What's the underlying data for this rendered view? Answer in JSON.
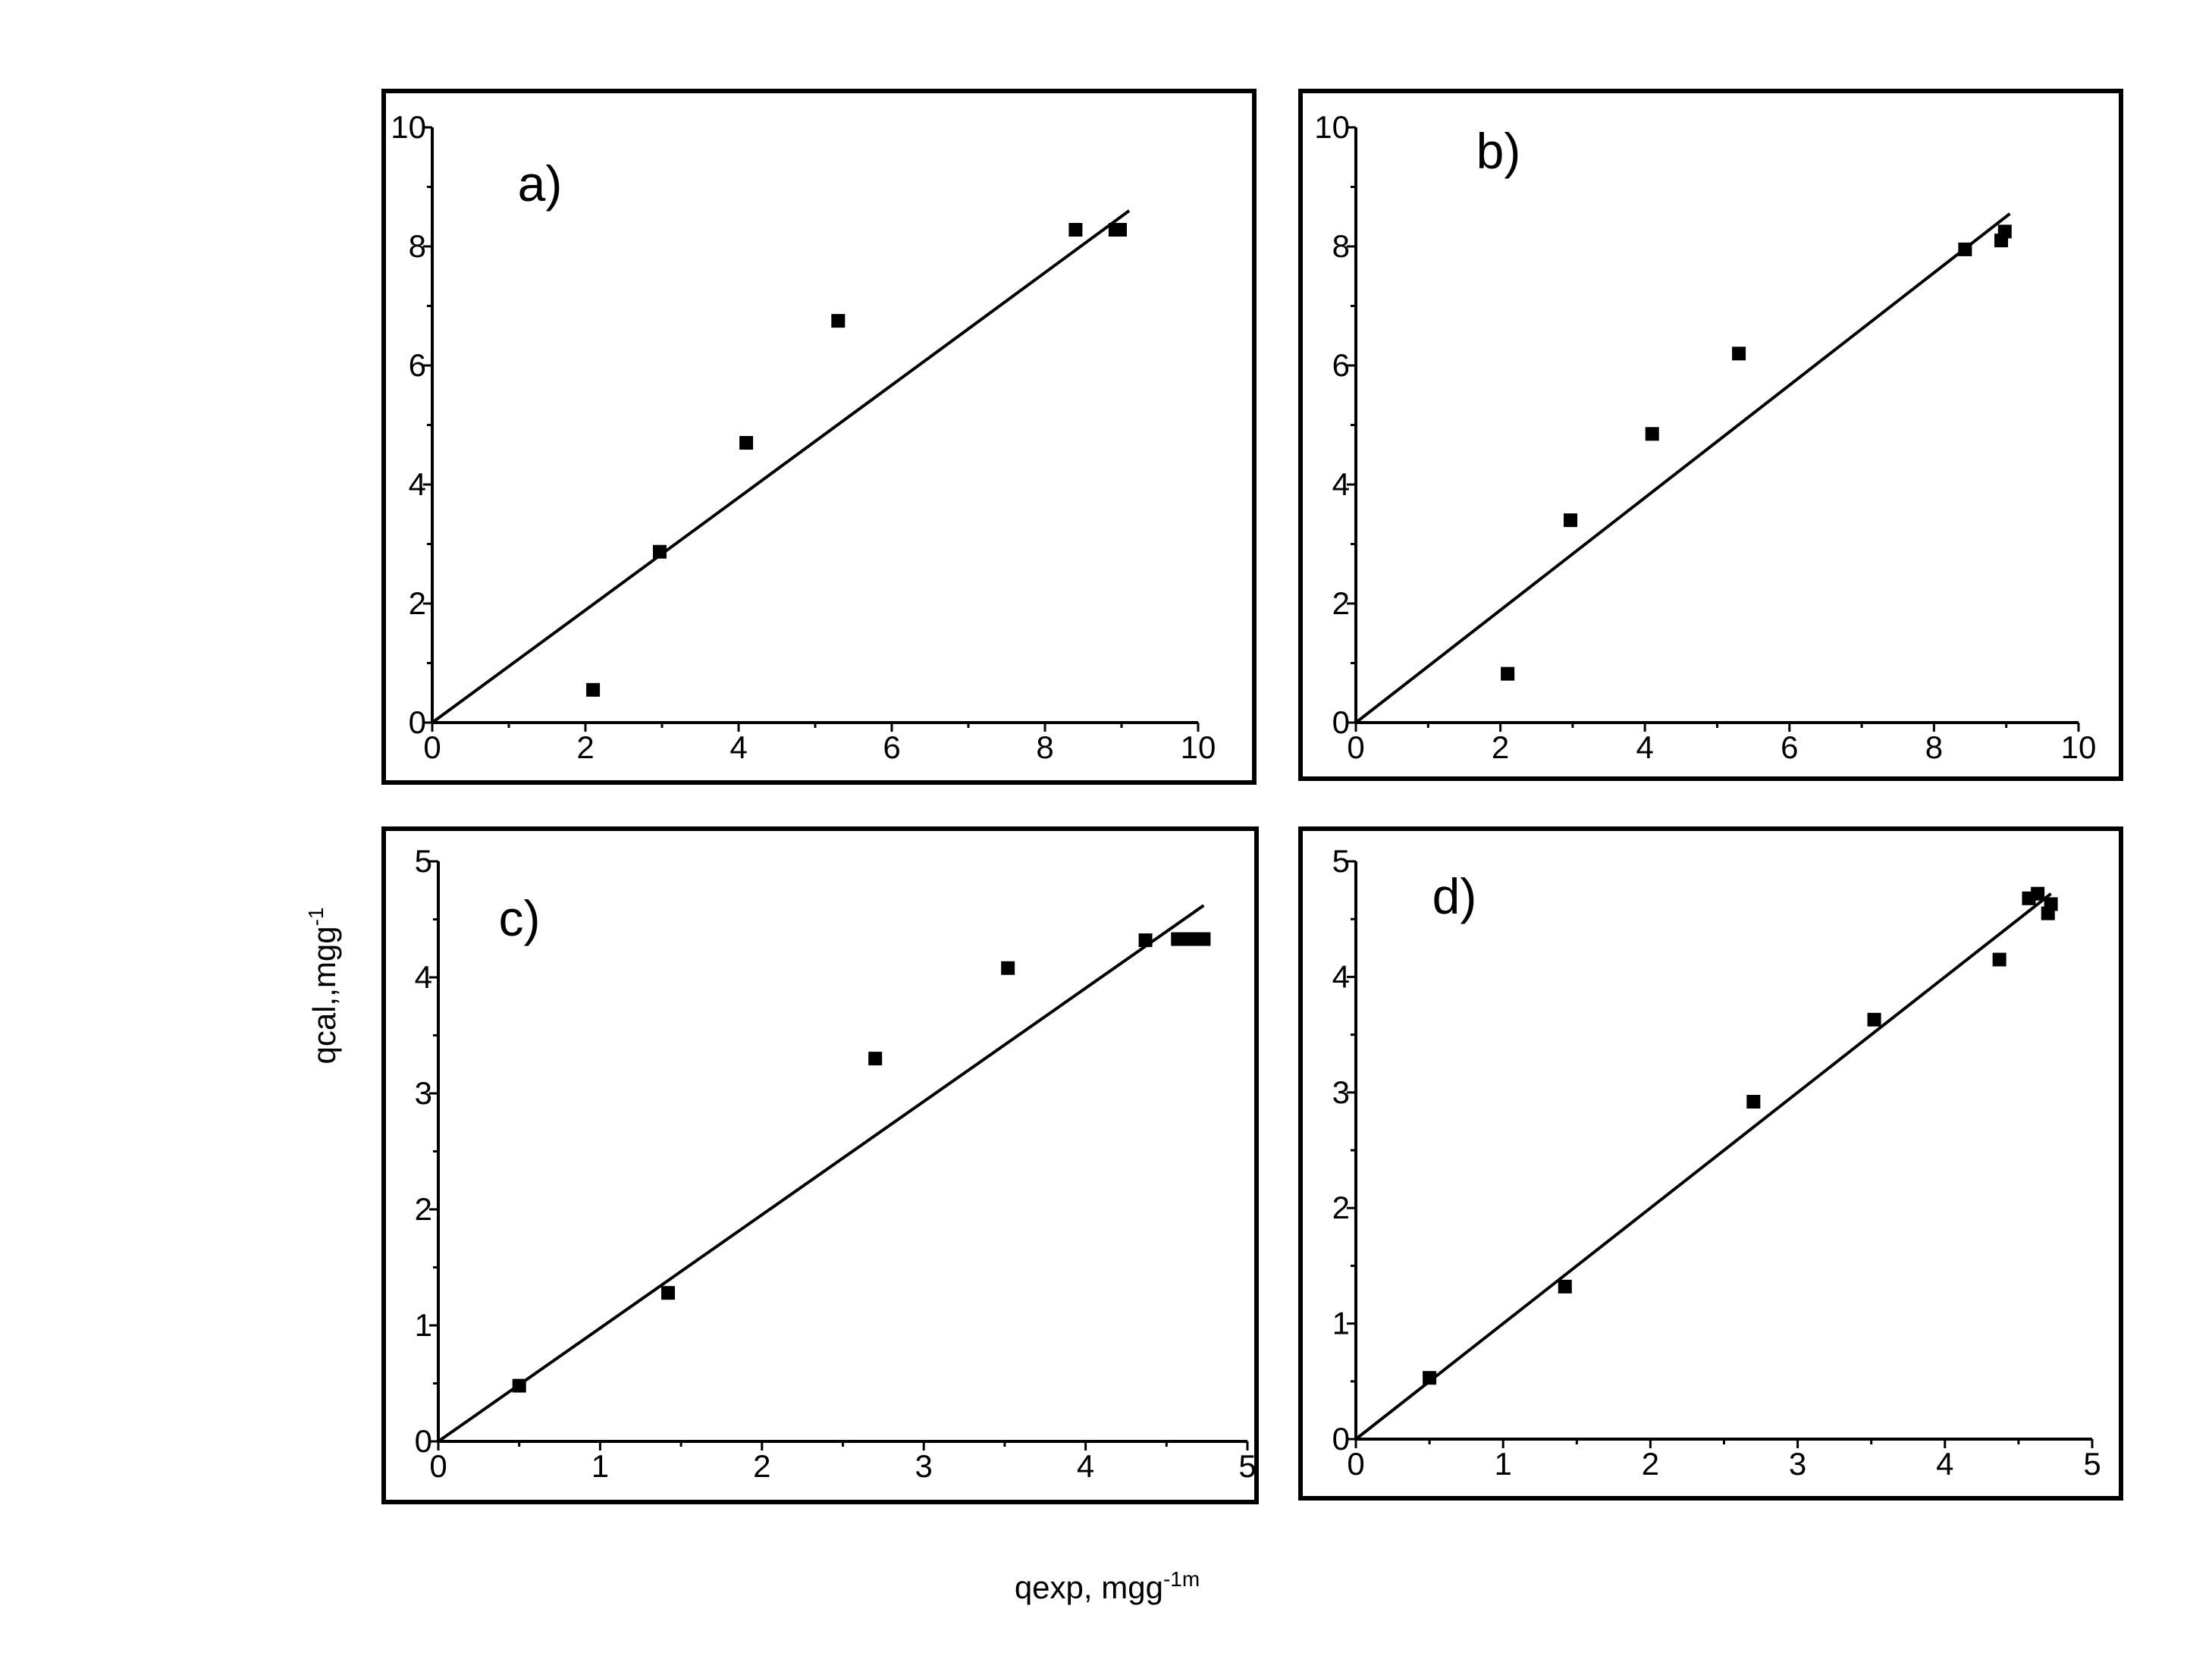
{
  "figure": {
    "xlabel_main": "qexp, mgg",
    "xlabel_sup": "-1m",
    "ylabel_main": "qcal,,mgg",
    "ylabel_sup": "-1"
  },
  "chart_data": [
    {
      "type": "scatter",
      "panel": "a)",
      "xlim": [
        0,
        10
      ],
      "ylim": [
        0,
        10
      ],
      "xticks": [
        0,
        2,
        4,
        6,
        8,
        10
      ],
      "yticks": [
        0,
        2,
        4,
        6,
        8,
        10
      ],
      "x_tick_labels": [
        "0",
        "2",
        "4",
        "6",
        "8",
        "10"
      ],
      "y_tick_labels": [
        "0",
        "2",
        "4",
        "6",
        "8",
        "10"
      ],
      "points": [
        [
          2.1,
          0.55
        ],
        [
          2.97,
          2.87
        ],
        [
          4.1,
          4.7
        ],
        [
          5.3,
          6.75
        ],
        [
          8.4,
          8.28
        ],
        [
          8.92,
          8.28
        ],
        [
          8.98,
          8.28
        ]
      ],
      "fit_line": [
        [
          0,
          0
        ],
        [
          9.1,
          8.6
        ]
      ],
      "grid": false
    },
    {
      "type": "scatter",
      "panel": "b)",
      "xlim": [
        0,
        10
      ],
      "ylim": [
        0,
        10
      ],
      "xticks": [
        0,
        2,
        4,
        6,
        8,
        10
      ],
      "yticks": [
        0,
        2,
        4,
        6,
        8,
        10
      ],
      "x_tick_labels": [
        "0",
        "2",
        "4",
        "6",
        "8",
        "10"
      ],
      "y_tick_labels": [
        "0",
        "2",
        "4",
        "6",
        "8",
        "10"
      ],
      "points": [
        [
          2.1,
          0.82
        ],
        [
          2.97,
          3.4
        ],
        [
          4.1,
          4.85
        ],
        [
          5.3,
          6.2
        ],
        [
          8.43,
          7.95
        ],
        [
          8.93,
          8.1
        ],
        [
          8.98,
          8.25
        ]
      ],
      "fit_line": [
        [
          0,
          0
        ],
        [
          9.05,
          8.55
        ]
      ],
      "grid": false
    },
    {
      "type": "scatter",
      "panel": "c)",
      "xlim": [
        0,
        5
      ],
      "ylim": [
        0,
        5
      ],
      "xticks": [
        0,
        1,
        2,
        3,
        4,
        5
      ],
      "yticks": [
        0,
        1,
        2,
        3,
        4,
        5
      ],
      "x_tick_labels": [
        "0",
        "1",
        "2",
        "3",
        "4",
        "5"
      ],
      "y_tick_labels": [
        "0",
        "1",
        "2",
        "3",
        "4",
        "5"
      ],
      "points": [
        [
          0.5,
          0.48
        ],
        [
          1.42,
          1.28
        ],
        [
          2.7,
          3.3
        ],
        [
          3.52,
          4.08
        ],
        [
          4.37,
          4.32
        ],
        [
          4.57,
          4.33
        ],
        [
          4.65,
          4.33
        ],
        [
          4.73,
          4.33
        ]
      ],
      "fit_line": [
        [
          0,
          0
        ],
        [
          4.73,
          4.62
        ]
      ],
      "grid": false
    },
    {
      "type": "scatter",
      "panel": "d)",
      "xlim": [
        0,
        5
      ],
      "ylim": [
        0,
        5
      ],
      "xticks": [
        0,
        1,
        2,
        3,
        4,
        5
      ],
      "yticks": [
        0,
        1,
        2,
        3,
        4,
        5
      ],
      "x_tick_labels": [
        "0",
        "1",
        "2",
        "3",
        "4",
        "5"
      ],
      "y_tick_labels": [
        "0",
        "1",
        "2",
        "3",
        "4",
        "5"
      ],
      "points": [
        [
          0.5,
          0.53
        ],
        [
          1.42,
          1.32
        ],
        [
          2.7,
          2.92
        ],
        [
          3.52,
          3.63
        ],
        [
          4.37,
          4.15
        ],
        [
          4.57,
          4.68
        ],
        [
          4.63,
          4.72
        ],
        [
          4.7,
          4.55
        ],
        [
          4.72,
          4.63
        ]
      ],
      "fit_line": [
        [
          0,
          0
        ],
        [
          4.72,
          4.72
        ]
      ],
      "grid": false
    }
  ]
}
